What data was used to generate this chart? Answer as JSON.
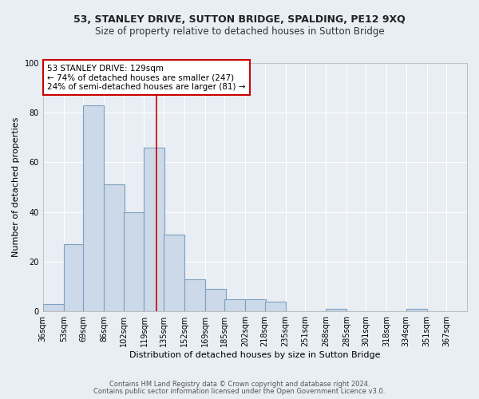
{
  "title1": "53, STANLEY DRIVE, SUTTON BRIDGE, SPALDING, PE12 9XQ",
  "title2": "Size of property relative to detached houses in Sutton Bridge",
  "xlabel": "Distribution of detached houses by size in Sutton Bridge",
  "ylabel": "Number of detached properties",
  "footnote1": "Contains HM Land Registry data © Crown copyright and database right 2024.",
  "footnote2": "Contains public sector information licensed under the Open Government Licence v3.0.",
  "bin_labels": [
    "36sqm",
    "53sqm",
    "69sqm",
    "86sqm",
    "102sqm",
    "119sqm",
    "135sqm",
    "152sqm",
    "169sqm",
    "185sqm",
    "202sqm",
    "218sqm",
    "235sqm",
    "251sqm",
    "268sqm",
    "285sqm",
    "301sqm",
    "318sqm",
    "334sqm",
    "351sqm",
    "367sqm"
  ],
  "bin_edges": [
    36,
    53,
    69,
    86,
    102,
    119,
    135,
    152,
    169,
    185,
    202,
    218,
    235,
    251,
    268,
    285,
    301,
    318,
    334,
    351,
    367
  ],
  "counts": [
    3,
    27,
    83,
    51,
    40,
    66,
    31,
    13,
    9,
    5,
    5,
    4,
    0,
    0,
    1,
    0,
    0,
    0,
    1,
    0,
    0
  ],
  "bar_color": "#ccd9e8",
  "bar_edge_color": "#7ca0c0",
  "reference_line_x": 129,
  "reference_line_color": "#cc0000",
  "annotation_text": "53 STANLEY DRIVE: 129sqm\n← 74% of detached houses are smaller (247)\n24% of semi-detached houses are larger (81) →",
  "annotation_box_color": "#ffffff",
  "annotation_box_edge_color": "#cc0000",
  "ylim": [
    0,
    100
  ],
  "yticks": [
    0,
    20,
    40,
    60,
    80,
    100
  ],
  "plot_bg_color": "#e8eef4",
  "fig_bg_color": "#e8eef4",
  "grid_color": "#ffffff",
  "title1_fontsize": 9,
  "title2_fontsize": 8.5,
  "xlabel_fontsize": 8,
  "ylabel_fontsize": 8,
  "annotation_fontsize": 7.5,
  "tick_fontsize": 7,
  "footnote_fontsize": 6
}
